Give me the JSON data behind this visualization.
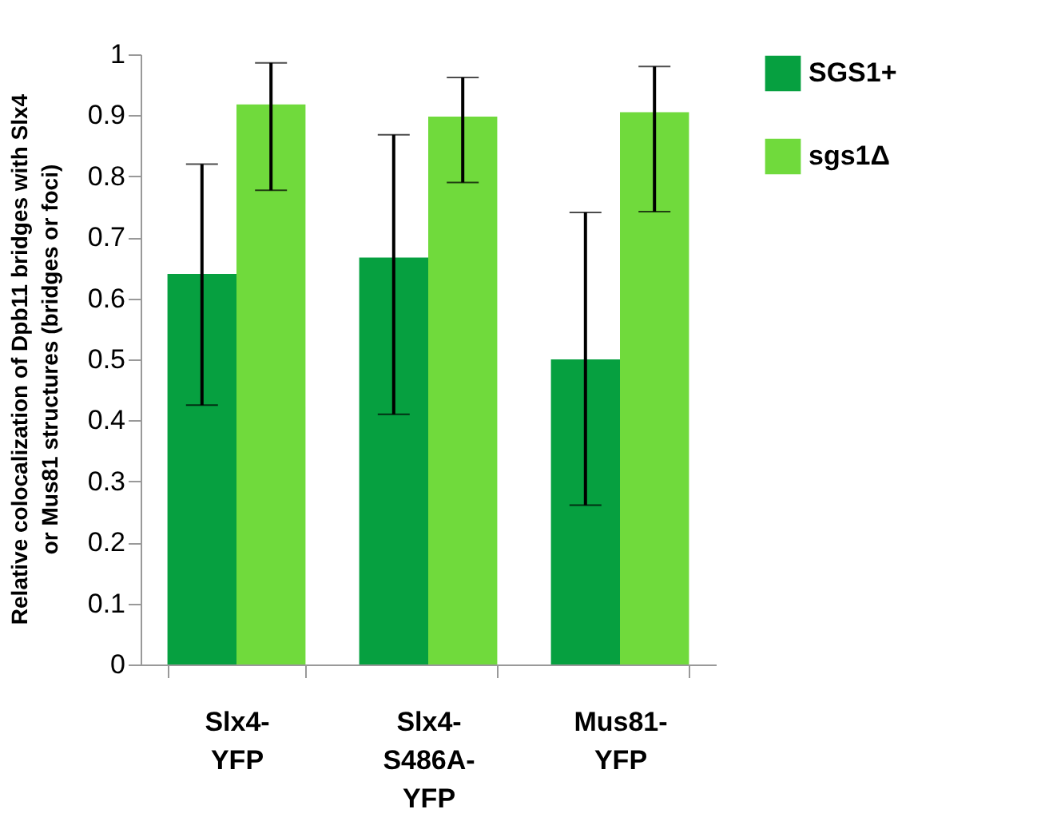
{
  "chart_data": {
    "type": "bar",
    "ylabel": "Relative colocalization of Dpb11 bridges with Slx4\nor Mus81 structures (bridges or foci)",
    "categories": [
      "Slx4-\nYFP",
      "Slx4-\nS486A-\nYFP",
      "Mus81-\nYFP"
    ],
    "series": [
      {
        "name": "SGS1+",
        "color": "#06a040",
        "values": [
          0.64,
          0.667,
          0.5
        ],
        "errors": [
          [
            0.425,
            0.82
          ],
          [
            0.41,
            0.868
          ],
          [
            0.261,
            0.741
          ]
        ]
      },
      {
        "name": "sgs1Δ",
        "color": "#70da3c",
        "values": [
          0.918,
          0.898,
          0.905
        ],
        "errors": [
          [
            0.777,
            0.986
          ],
          [
            0.79,
            0.962
          ],
          [
            0.742,
            0.98
          ]
        ]
      }
    ],
    "ylim": [
      0,
      1
    ],
    "yticks": [
      0,
      0.1,
      0.2,
      0.3,
      0.4,
      0.5,
      0.6,
      0.7,
      0.8,
      0.9,
      1
    ],
    "grid": false,
    "legend": "top right"
  }
}
